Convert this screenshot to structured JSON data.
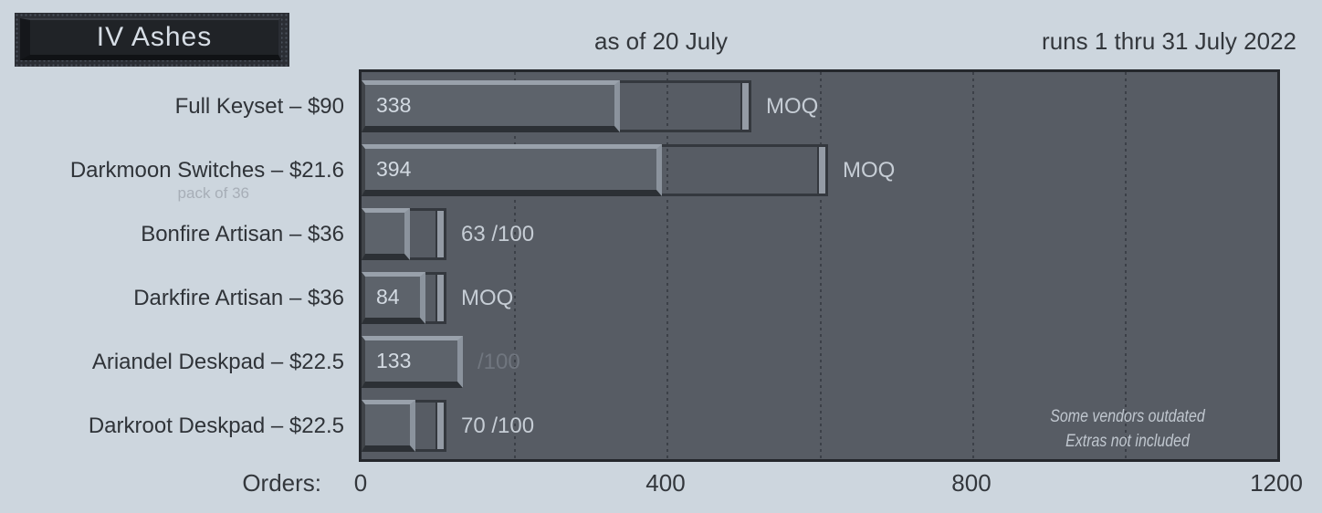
{
  "header": {
    "badge_label": "IV Ashes",
    "center_label": "as of 20 July",
    "right_label": "runs 1 thru 31 July 2022"
  },
  "notes": [
    "Some vendors outdated",
    "Extras not included"
  ],
  "colors": {
    "page_bg": "#cdd6de",
    "plot_bg": "#575c64",
    "plot_border": "#24272c",
    "bar_fill": "#5d636b",
    "bevel_light": "#99a1ab",
    "bevel_dark": "#2c3035",
    "ghost_border": "#34383e",
    "ghost_cap": "#949ba5",
    "label_dark": "#2f3338",
    "label_light": "#d3dae2",
    "label_faded": "#70767f"
  },
  "chart_data": {
    "type": "bar",
    "orientation": "horizontal",
    "title": "IV Ashes",
    "subtitle_left": "as of 20 July",
    "subtitle_right": "runs 1 thru 31 July 2022",
    "xlabel": "Orders:",
    "xlim": [
      0,
      1200
    ],
    "xticks": [
      "0",
      "400",
      "800",
      "1200"
    ],
    "xtick_values": [
      0,
      400,
      800,
      1200
    ],
    "gridline_step": 200,
    "grid": "dotted-vertical",
    "legend": "none",
    "rows": [
      {
        "label": "Full Keyset – $90",
        "sublabel": "",
        "value": 338,
        "moq": 500,
        "inside_label": "338",
        "annotation": "MOQ",
        "annotation_faded": false
      },
      {
        "label": "Darkmoon Switches – $21.6",
        "sublabel": "pack of 36",
        "value": 394,
        "moq": 600,
        "inside_label": "394",
        "annotation": "MOQ",
        "annotation_faded": false
      },
      {
        "label": "Bonfire Artisan – $36",
        "sublabel": "",
        "value": 63,
        "moq": 100,
        "inside_label": "",
        "annotation": "63 /100",
        "annotation_faded": false
      },
      {
        "label": "Darkfire Artisan – $36",
        "sublabel": "",
        "value": 84,
        "moq": 100,
        "inside_label": "84",
        "annotation": "MOQ",
        "annotation_faded": false
      },
      {
        "label": "Ariandel Deskpad – $22.5",
        "sublabel": "",
        "value": 133,
        "moq": 100,
        "inside_label": "133",
        "annotation": "/100",
        "annotation_faded": true
      },
      {
        "label": "Darkroot Deskpad – $22.5",
        "sublabel": "",
        "value": 70,
        "moq": 100,
        "inside_label": "",
        "annotation": "70 /100",
        "annotation_faded": false
      }
    ]
  }
}
